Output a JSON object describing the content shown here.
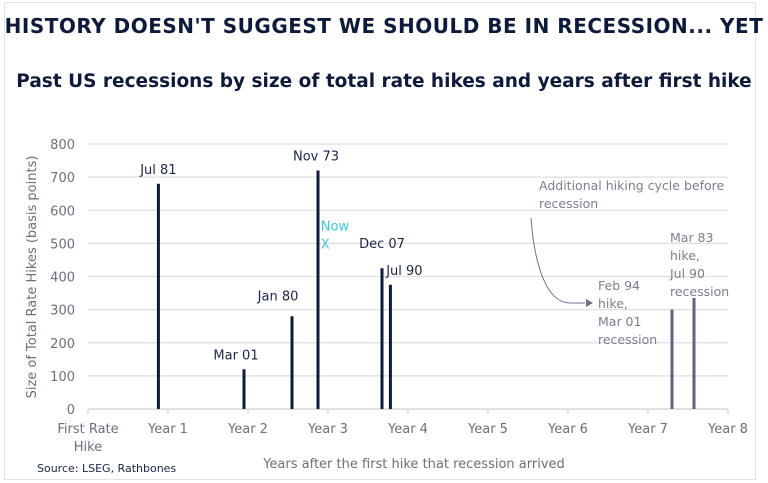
{
  "title": "HISTORY DOESN'T SUGGEST WE SHOULD BE IN RECESSION... YET",
  "subtitle": "Past US recessions by size of total rate hikes and years after first hike",
  "source": "Source: LSEG, Rathbones",
  "chart_data": {
    "type": "bar",
    "xlabel": "Years after the first hike that recession arrived",
    "ylabel": "Size of Total Rate Hikes (basis points)",
    "xlim": [
      0,
      8
    ],
    "ylim": [
      0,
      800
    ],
    "yticks": [
      0,
      100,
      200,
      300,
      400,
      500,
      600,
      700,
      800
    ],
    "xtick_labels": [
      "First Rate Hike",
      "Year 1",
      "Year 2",
      "Year 3",
      "Year 4",
      "Year 5",
      "Year 6",
      "Year 7",
      "Year 8"
    ],
    "grid": true,
    "series": [
      {
        "color": "#0e1a3a",
        "points": [
          {
            "label": "Jul 81",
            "x": 0.88,
            "y": 680
          },
          {
            "label": "Mar 01",
            "x": 1.95,
            "y": 120
          },
          {
            "label": "Jan 80",
            "x": 2.55,
            "y": 280
          },
          {
            "label": "Nov 73",
            "x": 2.875,
            "y": 720
          },
          {
            "label": "Dec 07",
            "x": 3.675,
            "y": 425
          },
          {
            "label": "Jul 90",
            "x": 3.78,
            "y": 375
          }
        ]
      },
      {
        "color": "#5e6480",
        "points": [
          {
            "label": "Feb 94 hike, Mar 01 recession",
            "x": 7.3,
            "y": 300
          },
          {
            "label": "Mar 83 hike, Jul 90 recession",
            "x": 7.575,
            "y": 335
          }
        ]
      }
    ],
    "now_marker": {
      "label": "Now",
      "marker": "X",
      "x": 2.96,
      "y": 500,
      "color": "#3ec6d6"
    },
    "annotation": "Additional hiking cycle before recession"
  }
}
